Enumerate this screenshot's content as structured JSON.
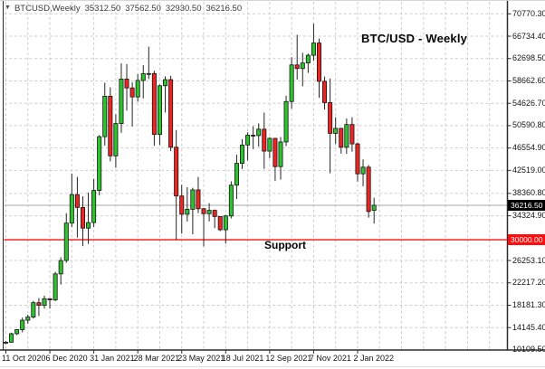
{
  "header": {
    "symbol": "BTCUSD,Weekly",
    "open": "35312.50",
    "high": "37562.50",
    "low": "32930.50",
    "close": "36216.50"
  },
  "overlays": {
    "title": "BTC/USD - Weekly",
    "support": "Support"
  },
  "price_axis": {
    "current_price_label": "36216.50",
    "support_price_label": "30000.00"
  },
  "chart_data": {
    "type": "candlestick",
    "title": "BTC/USD - Weekly",
    "symbol": "BTCUSD",
    "timeframe": "Weekly",
    "ylim": [
      10100,
      71800
    ],
    "y_ticks": [
      70770.3,
      66734.4,
      62698.5,
      58662.6,
      54626.7,
      50590.8,
      46554.9,
      42519.0,
      38360.8,
      34324.9,
      26253.1,
      22217.2,
      18181.3,
      14145.4,
      10109.5
    ],
    "x_tick_labels": [
      "11 Oct 2020",
      "6 Dec 2020",
      "31 Jan 2021",
      "28 Mar 2021",
      "23 May 2021",
      "18 Jul 2021",
      "12 Sep 2021",
      "7 Nov 2021",
      "2 Jan 2022"
    ],
    "x_tick_interval_bars": 8,
    "grid_interval_bars": 4,
    "support_level": 30000.0,
    "current_price": 36216.5,
    "last_bar_ohlc": {
      "open": 35312.5,
      "high": 37562.5,
      "low": 32930.5,
      "close": 36216.5
    },
    "candles_ohlc": [
      [
        11368,
        11725,
        11160,
        11508
      ],
      [
        11508,
        13218,
        11400,
        13040
      ],
      [
        13040,
        13845,
        12780,
        13780
      ],
      [
        13780,
        15960,
        13290,
        15480
      ],
      [
        15480,
        16480,
        14840,
        16050
      ],
      [
        16050,
        18965,
        15770,
        18640
      ],
      [
        18640,
        19480,
        16220,
        18170
      ],
      [
        18170,
        19920,
        17580,
        19360
      ],
      [
        19360,
        19420,
        17570,
        19150
      ],
      [
        19150,
        24200,
        18900,
        23840
      ],
      [
        23840,
        26850,
        21900,
        26250
      ],
      [
        26250,
        34800,
        25830,
        33000
      ],
      [
        33000,
        41950,
        32300,
        38150
      ],
      [
        38150,
        41350,
        30400,
        35830
      ],
      [
        35830,
        37850,
        28850,
        32100
      ],
      [
        32100,
        38500,
        29250,
        33100
      ],
      [
        33100,
        41000,
        32300,
        38900
      ],
      [
        38900,
        48900,
        37990,
        48600
      ],
      [
        48600,
        58350,
        47000,
        55900
      ],
      [
        55900,
        57500,
        44150,
        45140
      ],
      [
        45140,
        52640,
        43000,
        50970
      ],
      [
        50970,
        61850,
        49300,
        59000
      ],
      [
        59000,
        61700,
        53300,
        57400
      ],
      [
        57400,
        58400,
        50450,
        55780
      ],
      [
        55780,
        59900,
        54900,
        58750
      ],
      [
        58750,
        61500,
        55500,
        59990
      ],
      [
        59990,
        64850,
        59000,
        60000
      ],
      [
        60000,
        60500,
        46950,
        49000
      ],
      [
        49000,
        58000,
        47100,
        57800
      ],
      [
        57800,
        59500,
        52950,
        58900
      ],
      [
        58900,
        59600,
        46000,
        46700
      ],
      [
        46700,
        49800,
        30000,
        37900
      ],
      [
        37900,
        39900,
        31100,
        34600
      ],
      [
        34600,
        39480,
        33300,
        35500
      ],
      [
        35500,
        39380,
        31000,
        39000
      ],
      [
        39000,
        41330,
        34800,
        35600
      ],
      [
        35600,
        35750,
        28800,
        34700
      ],
      [
        34700,
        36600,
        33300,
        35300
      ],
      [
        35300,
        35450,
        32100,
        34200
      ],
      [
        34200,
        34270,
        31550,
        31800
      ],
      [
        31800,
        34500,
        29300,
        34290
      ],
      [
        34290,
        40550,
        33850,
        39850
      ],
      [
        39850,
        45350,
        37330,
        43790
      ],
      [
        43790,
        48150,
        42780,
        47100
      ],
      [
        47100,
        49400,
        44300,
        48870
      ],
      [
        48870,
        50500,
        46350,
        48800
      ],
      [
        48800,
        51000,
        46800,
        49950
      ],
      [
        49950,
        52950,
        42800,
        46000
      ],
      [
        46000,
        48500,
        44700,
        48300
      ],
      [
        48300,
        48350,
        40600,
        43200
      ],
      [
        43200,
        48550,
        40850,
        47650
      ],
      [
        47650,
        56000,
        46900,
        54950
      ],
      [
        54950,
        62950,
        53650,
        61550
      ],
      [
        61550,
        67000,
        58900,
        60900
      ],
      [
        60900,
        63750,
        57700,
        61900
      ],
      [
        61900,
        63600,
        60100,
        63300
      ],
      [
        63300,
        69000,
        62280,
        65500
      ],
      [
        65500,
        66300,
        55600,
        58600
      ],
      [
        58600,
        59450,
        53500,
        54750
      ],
      [
        54750,
        59100,
        42000,
        49200
      ],
      [
        49200,
        52100,
        47300,
        50100
      ],
      [
        50100,
        50200,
        45550,
        46700
      ],
      [
        46700,
        51900,
        45500,
        50800
      ],
      [
        50800,
        52100,
        45900,
        47300
      ],
      [
        47300,
        47560,
        40500,
        41900
      ],
      [
        41900,
        44500,
        39650,
        43100
      ],
      [
        43100,
        43500,
        34000,
        35100
      ],
      [
        35312.5,
        37562.5,
        32930.5,
        36216.5
      ]
    ],
    "colors": {
      "up": "#2ec22e",
      "down": "#ee2421",
      "body_border": "#151515",
      "wick": "#262626",
      "grid": "#cdcdcd",
      "support_line": "#f2100c",
      "bid_line": "#aaaaaa",
      "current_badge_bg": "#000000",
      "support_badge_bg": "#fd0e0e",
      "axis_border": "#2b2b2b"
    }
  }
}
